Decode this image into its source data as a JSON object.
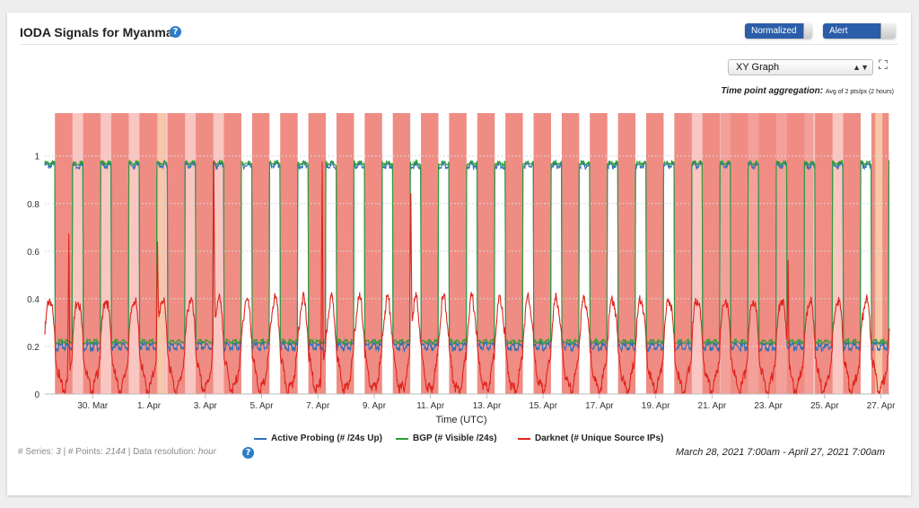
{
  "panel": {
    "title": "IODA Signals for Myanmar",
    "toggles": {
      "normalized": "Normalized",
      "alert_bands": "Alert Bands"
    },
    "graph_select": "XY Graph",
    "aggregation_label": "Time point aggregation:",
    "aggregation_value": "Avg of 2 pts/px (2 hours)",
    "footer": {
      "series_label": "# Series:",
      "series_count": "3",
      "points_label": "# Points:",
      "points_count": "2144",
      "resolution_label": "Data resolution:",
      "resolution_value": "hour"
    },
    "time_range": "March 28, 2021 7:00am - April 27, 2021 7:00am"
  },
  "chart_data": {
    "type": "line",
    "xlabel": "Time (UTC)",
    "ylabel": "",
    "x_unit": "days since March 28, 2021 07:00 UTC",
    "xlim": [
      0,
      30
    ],
    "ylim": [
      0,
      1.18
    ],
    "x_ticks": [
      {
        "pos": 1.7,
        "label": "30. Mar"
      },
      {
        "pos": 3.7,
        "label": "1. Apr"
      },
      {
        "pos": 5.7,
        "label": "3. Apr"
      },
      {
        "pos": 7.7,
        "label": "5. Apr"
      },
      {
        "pos": 9.7,
        "label": "7. Apr"
      },
      {
        "pos": 11.7,
        "label": "9. Apr"
      },
      {
        "pos": 13.7,
        "label": "11. Apr"
      },
      {
        "pos": 15.7,
        "label": "13. Apr"
      },
      {
        "pos": 17.7,
        "label": "15. Apr"
      },
      {
        "pos": 19.7,
        "label": "17. Apr"
      },
      {
        "pos": 21.7,
        "label": "19. Apr"
      },
      {
        "pos": 23.7,
        "label": "21. Apr"
      },
      {
        "pos": 25.7,
        "label": "23. Apr"
      },
      {
        "pos": 27.7,
        "label": "25. Apr"
      },
      {
        "pos": 29.7,
        "label": "27. Apr"
      }
    ],
    "y_ticks": [
      {
        "value": 0,
        "label": "0"
      },
      {
        "value": 0.2,
        "label": "0.2"
      },
      {
        "value": 0.4,
        "label": "0.4"
      },
      {
        "value": 0.6,
        "label": "0.6"
      },
      {
        "value": 0.8,
        "label": "0.8"
      },
      {
        "value": 1,
        "label": "1"
      }
    ],
    "outage_nights": [
      0.36,
      1.36,
      2.36,
      3.36,
      4.36,
      5.36,
      6.36,
      7.36,
      8.36,
      9.36,
      10.36,
      11.36,
      12.36,
      13.36,
      14.36,
      15.36,
      16.36,
      17.36,
      18.36,
      19.36,
      20.36,
      21.36,
      22.36,
      23.36,
      24.36,
      25.36,
      26.36,
      27.36,
      28.36,
      29.36
    ],
    "outage_width_days": 0.62,
    "alert_bands": {
      "color_strong": "#ef8c84",
      "color_light": "#f9c6c2",
      "color_orange": "#f5c9a8",
      "light_ranges": [
        [
          0.98,
          6.7
        ],
        [
          22.8,
          26.3
        ],
        [
          26.3,
          28.9
        ]
      ],
      "strong_ranges": [
        [
          0.36,
          0.98
        ],
        [
          3.9,
          4.25
        ],
        [
          24.0,
          27.3
        ]
      ],
      "orange_ranges": [
        [
          4.0,
          4.24
        ],
        [
          29.5,
          29.75
        ]
      ]
    },
    "series": [
      {
        "name": "Active Probing (# /24s Up)",
        "color": "#2e6fb8",
        "high": 0.96,
        "low": 0.2
      },
      {
        "name": "BGP (# Visible /24s)",
        "color": "#2f9e35",
        "high": 0.97,
        "low": 0.22
      },
      {
        "name": "Darknet (# Unique Source IPs)",
        "color": "#e0231c",
        "day_peak": 0.4,
        "night_low": 0.02,
        "spikes": [
          {
            "x": 0.85,
            "y": 0.67
          },
          {
            "x": 4.0,
            "y": 0.62
          },
          {
            "x": 6.0,
            "y": 0.97
          },
          {
            "x": 9.85,
            "y": 0.99
          },
          {
            "x": 13.0,
            "y": 0.87
          },
          {
            "x": 26.4,
            "y": 0.58
          }
        ]
      }
    ]
  },
  "colors": {
    "accent": "#2b5da8",
    "help": "#2d7cc7"
  }
}
